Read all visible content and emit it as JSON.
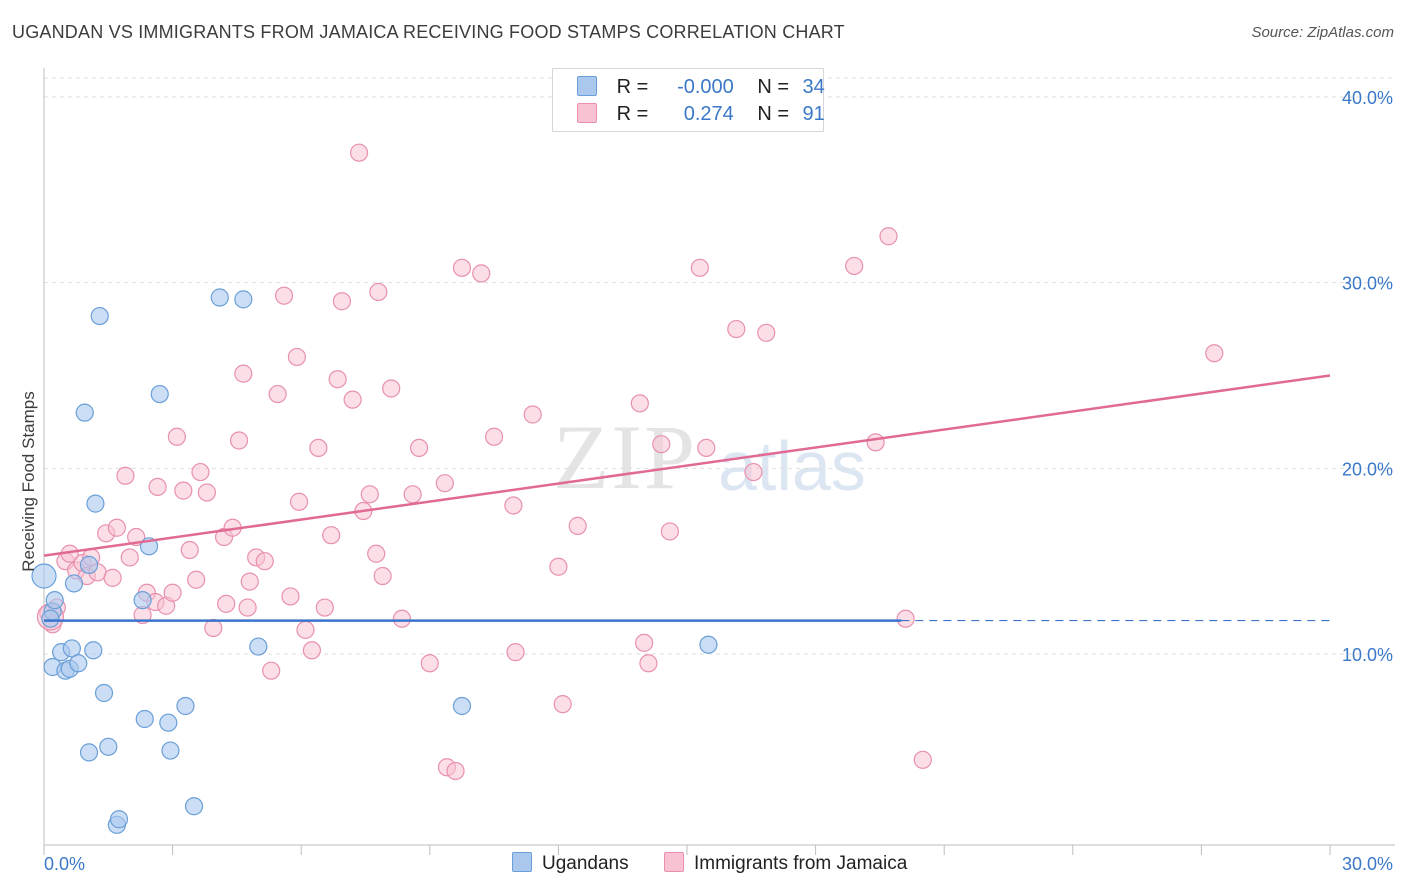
{
  "title": "UGANDAN VS IMMIGRANTS FROM JAMAICA RECEIVING FOOD STAMPS CORRELATION CHART",
  "source": "Source: ZipAtlas.com",
  "watermark": {
    "zip": "ZIP",
    "atlas": "atlas"
  },
  "legend_top": {
    "rows": [
      {
        "r_label": "R =",
        "r_value": "-0.000",
        "n_label": "N =",
        "n_value": "34"
      },
      {
        "r_label": "R =",
        "r_value": "0.274",
        "n_label": "N =",
        "n_value": "91"
      }
    ]
  },
  "bottom_legend": {
    "series_1": "Ugandans",
    "series_2": "Immigrants from Jamaica"
  },
  "colors": {
    "blue_fill": "#aac8ee",
    "blue_stroke": "#6a9fd8",
    "blue_line": "#3a74cc",
    "pink_fill": "#f8c2d2",
    "pink_stroke": "#e890ae",
    "pink_line": "#e06a93",
    "tick_text": "#3b78c8",
    "grid": "#dedede"
  },
  "chart_data": {
    "type": "scatter",
    "title": "UGANDAN VS IMMIGRANTS FROM JAMAICA RECEIVING FOOD STAMPS CORRELATION CHART",
    "xlabel": "",
    "ylabel": "Receiving Food Stamps",
    "xlim": [
      0,
      30
    ],
    "ylim": [
      0,
      40
    ],
    "x_tick_labels": [
      "0.0%",
      "30.0%"
    ],
    "y_ticks": [
      10,
      20,
      30,
      40
    ],
    "y_tick_labels": [
      "10.0%",
      "20.0%",
      "30.0%",
      "40.0%"
    ],
    "grid": true,
    "legend_position": "top-center",
    "series": [
      {
        "name": "Ugandans",
        "R": -0.0,
        "N": 34,
        "trend": {
          "x": [
            0,
            20
          ],
          "y": [
            11.8,
            11.8
          ],
          "dashed_to_x": 30
        },
        "points": [
          [
            0.0,
            14.2
          ],
          [
            0.2,
            12.3
          ],
          [
            0.25,
            12.9
          ],
          [
            0.2,
            9.3
          ],
          [
            0.4,
            10.1
          ],
          [
            0.5,
            9.1
          ],
          [
            0.6,
            9.2
          ],
          [
            0.65,
            10.3
          ],
          [
            0.7,
            13.8
          ],
          [
            0.8,
            9.5
          ],
          [
            0.95,
            23.0
          ],
          [
            1.05,
            14.8
          ],
          [
            1.15,
            10.2
          ],
          [
            1.2,
            18.1
          ],
          [
            1.3,
            28.2
          ],
          [
            1.4,
            7.9
          ],
          [
            1.5,
            5.0
          ],
          [
            1.05,
            4.7
          ],
          [
            1.7,
            0.8
          ],
          [
            1.75,
            1.1
          ],
          [
            2.3,
            12.9
          ],
          [
            2.35,
            6.5
          ],
          [
            2.45,
            15.8
          ],
          [
            2.7,
            24.0
          ],
          [
            2.9,
            6.3
          ],
          [
            2.95,
            4.8
          ],
          [
            3.3,
            7.2
          ],
          [
            3.5,
            1.8
          ],
          [
            4.1,
            29.2
          ],
          [
            4.65,
            29.1
          ],
          [
            5.0,
            10.4
          ],
          [
            9.75,
            7.2
          ],
          [
            15.5,
            10.5
          ],
          [
            0.15,
            11.9
          ]
        ]
      },
      {
        "name": "Immigrants from Jamaica",
        "R": 0.274,
        "N": 91,
        "trend": {
          "x": [
            0,
            30
          ],
          "y": [
            15.3,
            25.0
          ]
        },
        "points": [
          [
            0.1,
            12.2
          ],
          [
            0.2,
            11.6
          ],
          [
            0.3,
            12.5
          ],
          [
            0.5,
            15.0
          ],
          [
            0.6,
            15.4
          ],
          [
            0.75,
            14.5
          ],
          [
            0.9,
            14.9
          ],
          [
            1.0,
            14.2
          ],
          [
            1.1,
            15.2
          ],
          [
            1.25,
            14.4
          ],
          [
            1.45,
            16.5
          ],
          [
            1.6,
            14.1
          ],
          [
            1.7,
            16.8
          ],
          [
            1.9,
            19.6
          ],
          [
            2.0,
            15.2
          ],
          [
            2.15,
            16.3
          ],
          [
            2.3,
            12.1
          ],
          [
            2.4,
            13.3
          ],
          [
            2.6,
            12.8
          ],
          [
            2.65,
            19.0
          ],
          [
            2.85,
            12.6
          ],
          [
            3.0,
            13.3
          ],
          [
            3.1,
            21.7
          ],
          [
            3.25,
            18.8
          ],
          [
            3.4,
            15.6
          ],
          [
            3.55,
            14.0
          ],
          [
            3.65,
            19.8
          ],
          [
            3.8,
            18.7
          ],
          [
            3.95,
            11.4
          ],
          [
            4.2,
            16.3
          ],
          [
            4.25,
            12.7
          ],
          [
            4.4,
            16.8
          ],
          [
            4.55,
            21.5
          ],
          [
            4.65,
            25.1
          ],
          [
            4.75,
            12.5
          ],
          [
            4.8,
            13.9
          ],
          [
            4.95,
            15.2
          ],
          [
            5.15,
            15.0
          ],
          [
            5.3,
            9.1
          ],
          [
            5.45,
            24.0
          ],
          [
            5.6,
            29.3
          ],
          [
            5.75,
            13.1
          ],
          [
            5.9,
            26.0
          ],
          [
            5.95,
            18.2
          ],
          [
            6.1,
            11.3
          ],
          [
            6.25,
            10.2
          ],
          [
            6.4,
            21.1
          ],
          [
            6.55,
            12.5
          ],
          [
            6.7,
            16.4
          ],
          [
            6.85,
            24.8
          ],
          [
            6.95,
            29.0
          ],
          [
            7.2,
            23.7
          ],
          [
            7.35,
            37.0
          ],
          [
            7.45,
            17.7
          ],
          [
            7.6,
            18.6
          ],
          [
            7.75,
            15.4
          ],
          [
            7.8,
            29.5
          ],
          [
            7.9,
            14.2
          ],
          [
            8.1,
            24.3
          ],
          [
            8.35,
            11.9
          ],
          [
            8.6,
            18.6
          ],
          [
            8.75,
            21.1
          ],
          [
            9.0,
            9.5
          ],
          [
            9.35,
            19.2
          ],
          [
            9.4,
            3.9
          ],
          [
            9.6,
            3.7
          ],
          [
            9.75,
            30.8
          ],
          [
            10.2,
            30.5
          ],
          [
            10.5,
            21.7
          ],
          [
            10.95,
            18.0
          ],
          [
            11.0,
            10.1
          ],
          [
            11.4,
            22.9
          ],
          [
            12.0,
            14.7
          ],
          [
            12.1,
            7.3
          ],
          [
            12.45,
            16.9
          ],
          [
            13.9,
            23.5
          ],
          [
            14.0,
            10.6
          ],
          [
            14.1,
            9.5
          ],
          [
            14.4,
            21.3
          ],
          [
            14.6,
            16.6
          ],
          [
            15.3,
            30.8
          ],
          [
            15.45,
            21.1
          ],
          [
            16.15,
            27.5
          ],
          [
            16.55,
            19.8
          ],
          [
            16.85,
            27.3
          ],
          [
            18.9,
            30.9
          ],
          [
            19.4,
            21.4
          ],
          [
            19.7,
            32.5
          ],
          [
            20.1,
            11.9
          ],
          [
            20.5,
            4.3
          ],
          [
            27.3,
            26.2
          ]
        ]
      }
    ]
  }
}
